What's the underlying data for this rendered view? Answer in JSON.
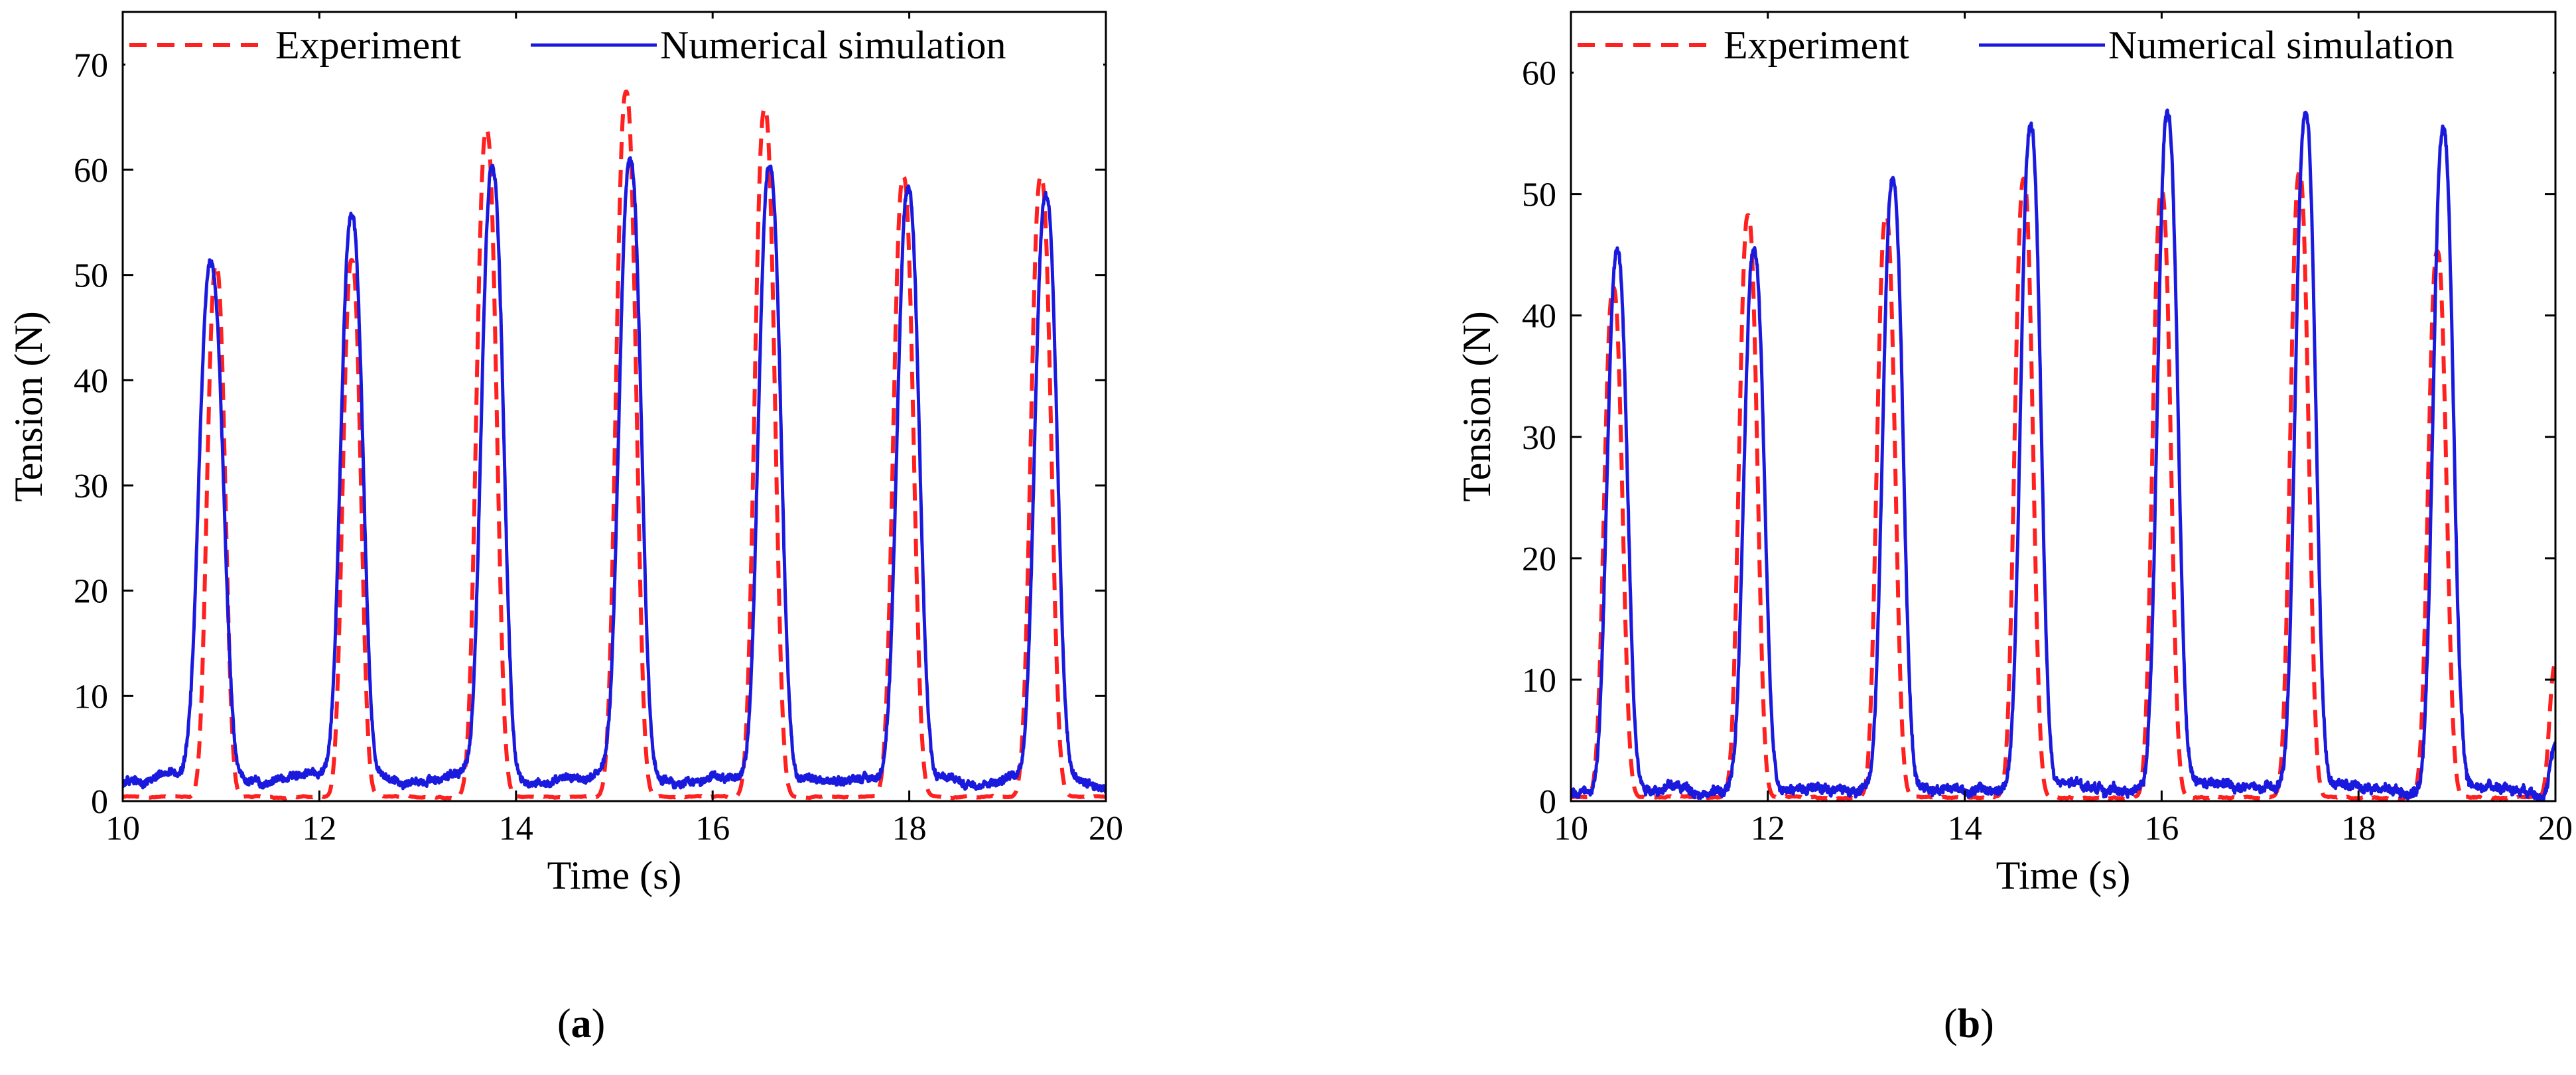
{
  "chart_data": [
    {
      "type": "line",
      "panel": "a",
      "caption_open": "(",
      "caption_letter": "a",
      "caption_close": ")",
      "xlabel": "Time (s)",
      "ylabel": "Tension (N)",
      "xlim": [
        10,
        20
      ],
      "ylim": [
        0,
        75
      ],
      "xticks": [
        10,
        12,
        14,
        16,
        18,
        20
      ],
      "yticks": [
        0,
        10,
        20,
        30,
        40,
        50,
        60,
        70
      ],
      "legend": {
        "position": "top",
        "entries": [
          "Experiment",
          "Numerical simulation"
        ]
      },
      "series": [
        {
          "name": "Experiment",
          "style": "dashed",
          "color": "#ff2020",
          "baseline": 0.4,
          "peaks": [
            {
              "t": 10.95,
              "v": 50.5,
              "w": 0.09
            },
            {
              "t": 12.33,
              "v": 51.0,
              "w": 0.09
            },
            {
              "t": 13.7,
              "v": 63.5,
              "w": 0.1
            },
            {
              "t": 15.12,
              "v": 67.0,
              "w": 0.1
            },
            {
              "t": 16.53,
              "v": 65.5,
              "w": 0.1
            },
            {
              "t": 17.94,
              "v": 59.0,
              "w": 0.1
            },
            {
              "t": 19.34,
              "v": 59.0,
              "w": 0.1
            }
          ]
        },
        {
          "name": "Numerical simulation",
          "style": "solid",
          "color": "#1a1adf",
          "baseline": 1.6,
          "peaks": [
            {
              "t": 10.9,
              "v": 48.5,
              "w": 0.12
            },
            {
              "t": 12.33,
              "v": 53.0,
              "w": 0.11
            },
            {
              "t": 13.76,
              "v": 57.8,
              "w": 0.11
            },
            {
              "t": 15.16,
              "v": 58.2,
              "w": 0.11
            },
            {
              "t": 16.58,
              "v": 58.0,
              "w": 0.11
            },
            {
              "t": 17.99,
              "v": 55.3,
              "w": 0.11
            },
            {
              "t": 19.39,
              "v": 55.5,
              "w": 0.11
            }
          ]
        }
      ]
    },
    {
      "type": "line",
      "panel": "b",
      "caption_open": "(",
      "caption_letter": "b",
      "caption_close": ")",
      "xlabel": "Time (s)",
      "ylabel": "Tension (N)",
      "xlim": [
        10,
        20
      ],
      "ylim": [
        0,
        65
      ],
      "xticks": [
        10,
        12,
        14,
        16,
        18,
        20
      ],
      "yticks": [
        0,
        10,
        20,
        30,
        40,
        50,
        60
      ],
      "legend": {
        "position": "top",
        "entries": [
          "Experiment",
          "Numerical simulation"
        ]
      },
      "series": [
        {
          "name": "Experiment",
          "style": "dashed",
          "color": "#ff2020",
          "baseline": 0.3,
          "peaks": [
            {
              "t": 10.43,
              "v": 42.0,
              "w": 0.09
            },
            {
              "t": 11.8,
              "v": 48.0,
              "w": 0.09
            },
            {
              "t": 13.2,
              "v": 48.0,
              "w": 0.09
            },
            {
              "t": 14.6,
              "v": 51.0,
              "w": 0.09
            },
            {
              "t": 16.0,
              "v": 50.0,
              "w": 0.09
            },
            {
              "t": 17.4,
              "v": 51.5,
              "w": 0.09
            },
            {
              "t": 18.8,
              "v": 45.0,
              "w": 0.09
            },
            {
              "t": 20.0,
              "v": 11.0,
              "w": 0.06
            }
          ]
        },
        {
          "name": "Numerical simulation",
          "style": "solid",
          "color": "#1a1adf",
          "baseline": 0.8,
          "peaks": [
            {
              "t": 10.47,
              "v": 44.0,
              "w": 0.1
            },
            {
              "t": 11.86,
              "v": 44.0,
              "w": 0.1
            },
            {
              "t": 13.27,
              "v": 50.3,
              "w": 0.1
            },
            {
              "t": 14.67,
              "v": 54.3,
              "w": 0.1
            },
            {
              "t": 16.06,
              "v": 55.8,
              "w": 0.1
            },
            {
              "t": 17.46,
              "v": 55.3,
              "w": 0.1
            },
            {
              "t": 18.86,
              "v": 54.3,
              "w": 0.1
            },
            {
              "t": 20.0,
              "v": 3.5,
              "w": 0.05
            }
          ]
        }
      ]
    }
  ]
}
